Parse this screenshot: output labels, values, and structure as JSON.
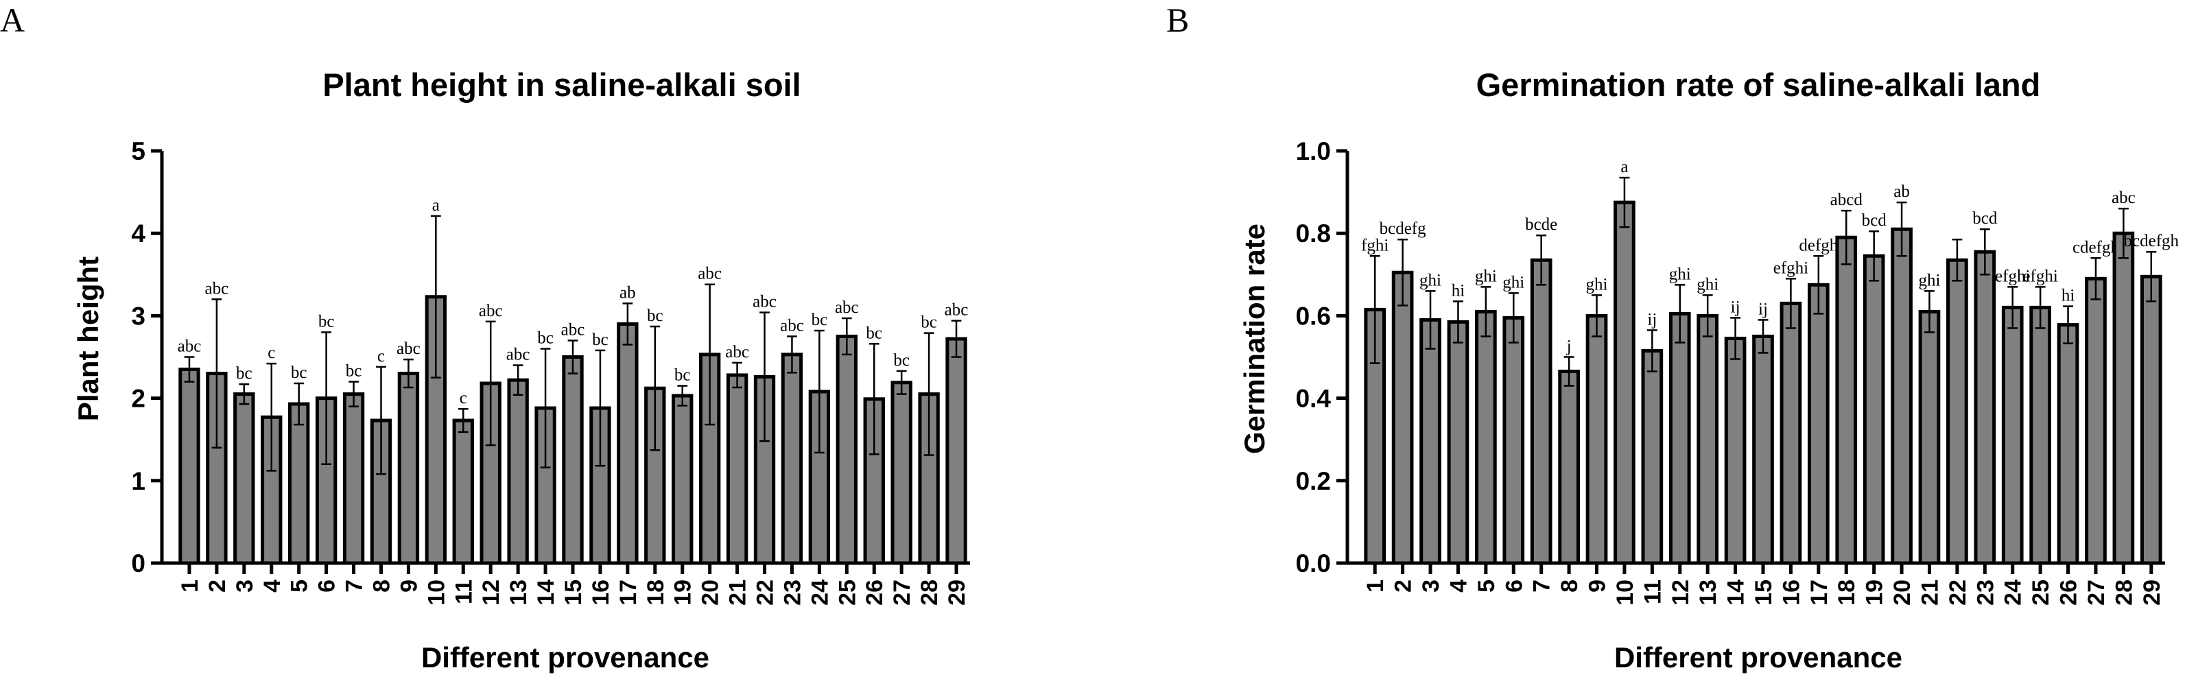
{
  "chart_data": [
    {
      "type": "bar",
      "panel_label": "A",
      "title": "Plant height in saline-alkali soil",
      "xlabel": "Different provenance",
      "ylabel": "Plant height",
      "ylim": [
        0,
        5
      ],
      "yticks": [
        "0",
        "1",
        "2",
        "3",
        "4",
        "5"
      ],
      "categories": [
        "1",
        "2",
        "3",
        "4",
        "5",
        "6",
        "7",
        "8",
        "9",
        "10",
        "11",
        "12",
        "13",
        "14",
        "15",
        "16",
        "17",
        "18",
        "19",
        "20",
        "21",
        "22",
        "23",
        "24",
        "25",
        "26",
        "27",
        "28",
        "29"
      ],
      "values": [
        2.35,
        2.3,
        2.05,
        1.77,
        1.93,
        2.0,
        2.05,
        1.73,
        2.3,
        3.23,
        1.73,
        2.18,
        2.22,
        1.88,
        2.5,
        1.88,
        2.9,
        2.12,
        2.03,
        2.53,
        2.28,
        2.26,
        2.53,
        2.08,
        2.75,
        1.99,
        2.19,
        2.05,
        2.72
      ],
      "errors": [
        0.15,
        0.9,
        0.12,
        0.65,
        0.25,
        0.8,
        0.15,
        0.65,
        0.17,
        0.98,
        0.14,
        0.75,
        0.18,
        0.72,
        0.2,
        0.7,
        0.25,
        0.75,
        0.12,
        0.85,
        0.15,
        0.78,
        0.22,
        0.74,
        0.22,
        0.67,
        0.14,
        0.74,
        0.22
      ],
      "labels": [
        "abc",
        "abc",
        "bc",
        "c",
        "bc",
        "bc",
        "bc",
        "c",
        "abc",
        "a",
        "c",
        "abc",
        "abc",
        "bc",
        "abc",
        "bc",
        "ab",
        "bc",
        "bc",
        "abc",
        "abc",
        "abc",
        "abc",
        "bc",
        "abc",
        "bc",
        "bc",
        "bc",
        "abc"
      ],
      "bar_color": "#808080"
    },
    {
      "type": "bar",
      "panel_label": "B",
      "title": "Germination rate of saline-alkali land",
      "xlabel": "Different provenance",
      "ylabel": "Germination rate",
      "ylim": [
        0,
        1.0
      ],
      "yticks": [
        "0.0",
        "0.2",
        "0.4",
        "0.6",
        "0.8",
        "1.0"
      ],
      "categories": [
        "1",
        "2",
        "3",
        "4",
        "5",
        "6",
        "7",
        "8",
        "9",
        "10",
        "11",
        "12",
        "13",
        "14",
        "15",
        "16",
        "17",
        "18",
        "19",
        "20",
        "21",
        "22",
        "23",
        "24",
        "25",
        "26",
        "27",
        "28",
        "29"
      ],
      "values": [
        0.615,
        0.705,
        0.59,
        0.585,
        0.61,
        0.595,
        0.735,
        0.465,
        0.6,
        0.875,
        0.515,
        0.605,
        0.6,
        0.545,
        0.55,
        0.63,
        0.675,
        0.79,
        0.745,
        0.81,
        0.61,
        0.735,
        0.755,
        0.62,
        0.62,
        0.578,
        0.69,
        0.8,
        0.695
      ],
      "errors": [
        0.13,
        0.08,
        0.07,
        0.05,
        0.06,
        0.06,
        0.06,
        0.035,
        0.05,
        0.06,
        0.05,
        0.07,
        0.05,
        0.05,
        0.04,
        0.06,
        0.07,
        0.065,
        0.06,
        0.065,
        0.05,
        0.05,
        0.055,
        0.05,
        0.05,
        0.045,
        0.05,
        0.06,
        0.06
      ],
      "labels": [
        "fghi",
        "bcdefg",
        "ghi",
        "hi",
        "ghi",
        "ghi",
        "bcde",
        "j",
        "ghi",
        "a",
        "ij",
        "ghi",
        "ghi",
        "ij",
        "ij",
        "efghi",
        "defgh",
        "abcd",
        "bcd",
        "ab",
        "ghi",
        "",
        "bcd",
        "efghi",
        "efghi",
        "hi",
        "cdefgh",
        "abc",
        "bcdefgh"
      ],
      "bar_color": "#808080"
    }
  ]
}
